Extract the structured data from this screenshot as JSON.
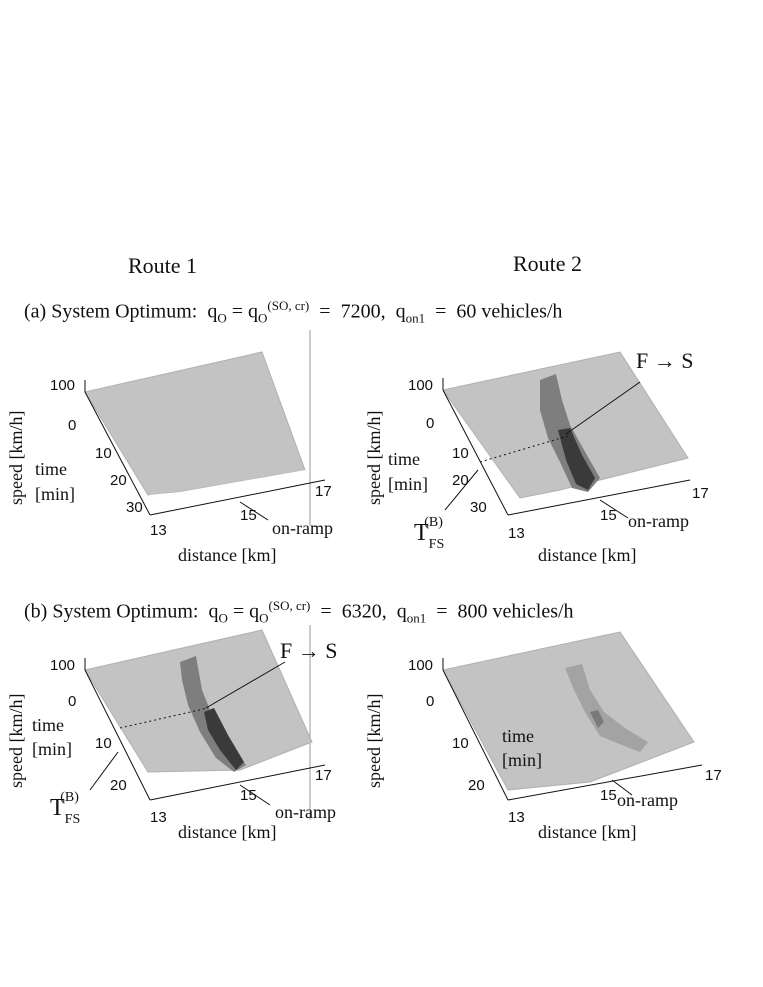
{
  "columns": {
    "route1": "Route 1",
    "route2": "Route 2"
  },
  "row_a": {
    "prefix": "(a) System Optimum:",
    "q": "q",
    "q_sub": "O",
    "eq": "=",
    "q2_sub": "O",
    "q2_sup": "(SO, cr)",
    "eq2": "=",
    "value": "7200,",
    "qon_sub": "on1",
    "eq3": "=",
    "on_value": "60 vehicles/h"
  },
  "row_b": {
    "prefix": "(b) System Optimum:",
    "q": "q",
    "q_sub": "O",
    "eq": "=",
    "q2_sub": "O",
    "q2_sup": "(SO, cr)",
    "eq2": "=",
    "value": "6320,",
    "qon_sub": "on1",
    "eq3": "=",
    "on_value": "800 vehicles/h"
  },
  "axes": {
    "speed": "speed [km/h]",
    "time1": "time",
    "time2": "[min]",
    "distance": "distance [km]",
    "speed_tick": "100",
    "dist_ticks": [
      "13",
      "15",
      "17"
    ],
    "time_ticks_a": [
      "0",
      "10",
      "20",
      "30"
    ],
    "time_ticks_b": [
      "0",
      "10",
      "20"
    ]
  },
  "annotations": {
    "on_ramp": "on-ramp",
    "fs": "F",
    "arrow": "→",
    "s": "S",
    "t": "T",
    "t_sub": "FS",
    "t_sup": "(B)"
  },
  "colors": {
    "surface": "#c3c3c3",
    "edge": "#a8a8a8",
    "dark": "#3a3a3a",
    "mid": "#7e7e7e"
  }
}
